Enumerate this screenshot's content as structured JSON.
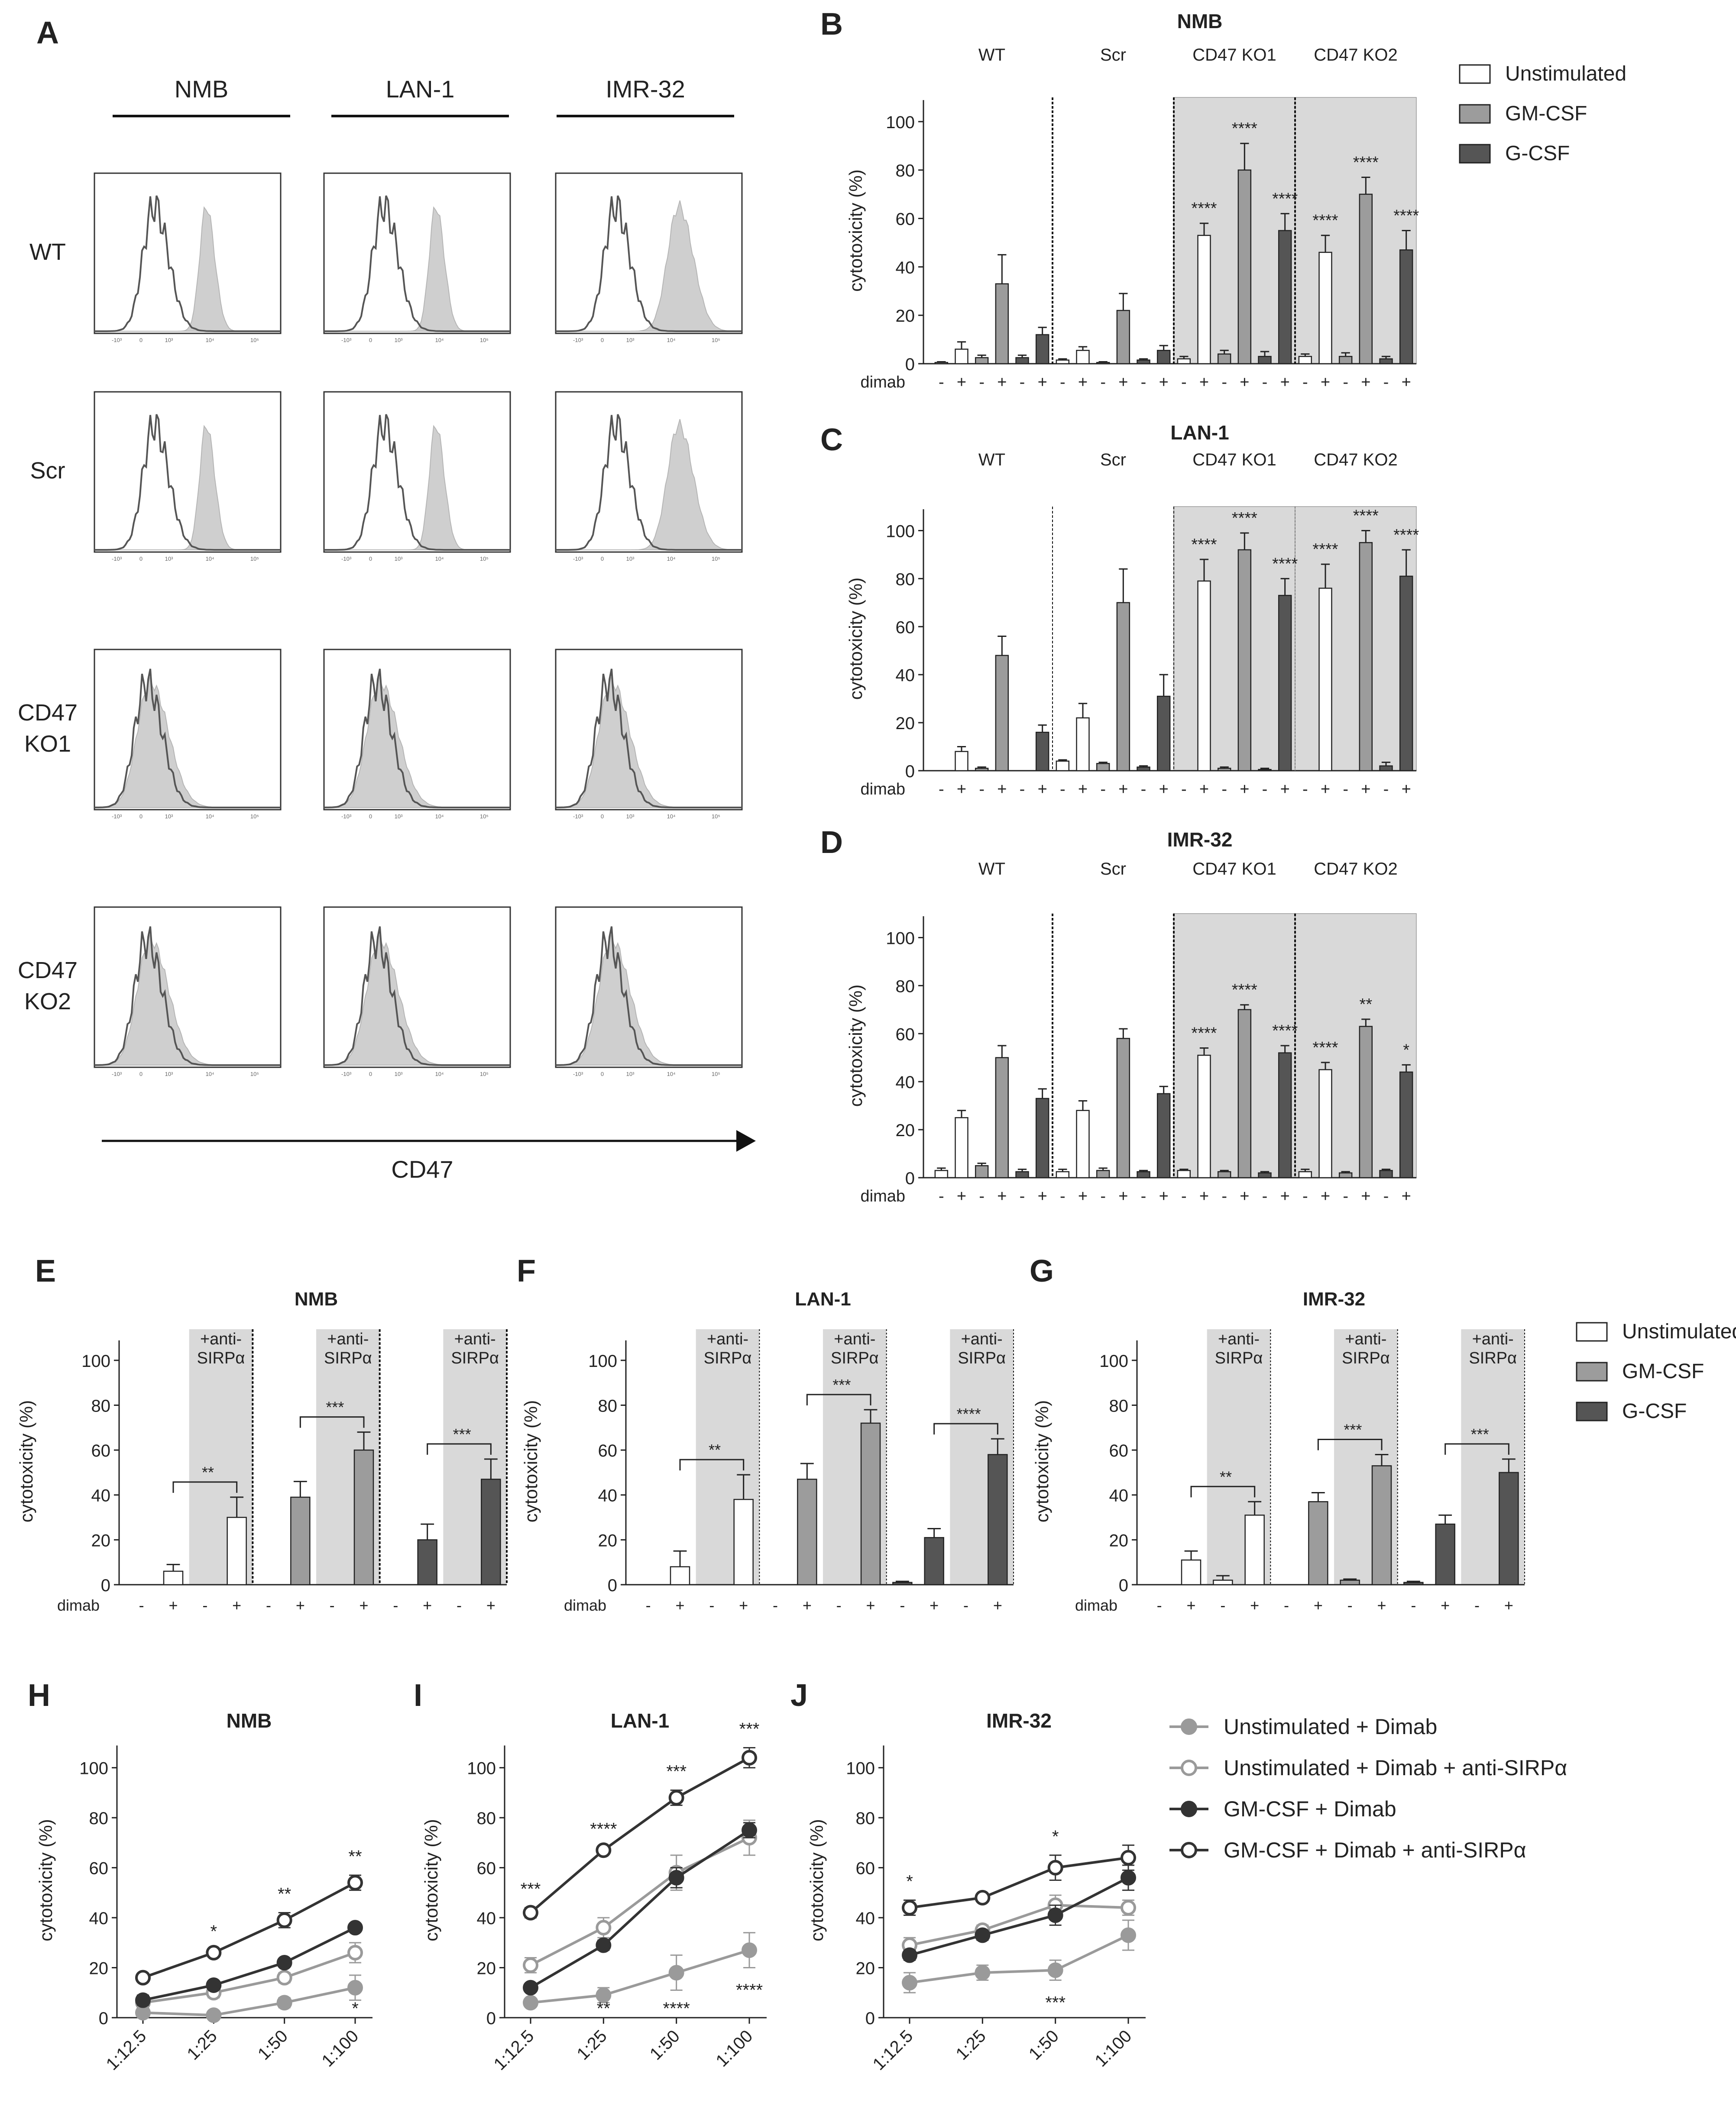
{
  "figure": {
    "panel_letters": [
      "A",
      "B",
      "C",
      "D",
      "E",
      "F",
      "G",
      "H",
      "I",
      "J"
    ],
    "panelA": {
      "columns": [
        "NMB",
        "LAN-1",
        "IMR-32"
      ],
      "rows": [
        "WT",
        "Scr",
        "CD47\nKO1",
        "CD47\nKO2"
      ],
      "axis_label": "CD47",
      "tick_labels": [
        "-10³",
        "0",
        "10³",
        "10⁴",
        "10⁵"
      ]
    },
    "barLegend": {
      "items": [
        "Unstimulated",
        "GM-CSF",
        "G-CSF"
      ]
    },
    "lineLegend": {
      "items": [
        "Unstimulated + Dimab",
        "Unstimulated + Dimab + anti-SIRPα",
        "GM-CSF + Dimab",
        "GM-CSF + Dimab + anti-SIRPα"
      ]
    },
    "colors": {
      "unstim": "#ffffff",
      "gm": "#9c9c9c",
      "g": "#555555",
      "shade": "#d9d9d9",
      "line_dark": "#333333",
      "line_light": "#9a9a9a"
    }
  },
  "chart_data": [
    {
      "id": "B",
      "type": "bar",
      "title": "NMB",
      "ylabel": "cytotoxicity (%)",
      "ylim": [
        0,
        110
      ],
      "yticks": [
        0,
        20,
        40,
        60,
        80,
        100
      ],
      "xrow_label": "dimab",
      "groups": [
        "WT",
        "Scr",
        "CD47 KO1",
        "CD47 KO2"
      ],
      "shaded_groups": [
        2,
        3
      ],
      "dimab": [
        "-",
        "+",
        "-",
        "+",
        "-",
        "+"
      ],
      "series": [
        {
          "group": "WT",
          "unstim": [
            0.5,
            6
          ],
          "gm": [
            2.5,
            33
          ],
          "g": [
            2.5,
            12
          ],
          "err_unstim": [
            0.3,
            3
          ],
          "err_gm": [
            1,
            12
          ],
          "err_g": [
            1,
            3
          ]
        },
        {
          "group": "Scr",
          "unstim": [
            1.5,
            5.5
          ],
          "gm": [
            0.5,
            22
          ],
          "g": [
            1.5,
            5.5
          ],
          "err_unstim": [
            0.5,
            1.5
          ],
          "err_gm": [
            0.3,
            7
          ],
          "err_g": [
            0.5,
            2
          ]
        },
        {
          "group": "CD47 KO1",
          "unstim": [
            2,
            53
          ],
          "gm": [
            4,
            80
          ],
          "g": [
            3,
            55
          ],
          "err_unstim": [
            1,
            5
          ],
          "err_gm": [
            1.5,
            11
          ],
          "err_g": [
            2,
            7
          ]
        },
        {
          "group": "CD47 KO2",
          "unstim": [
            3,
            46
          ],
          "gm": [
            3,
            70
          ],
          "g": [
            2,
            47
          ],
          "err_unstim": [
            1,
            7
          ],
          "err_gm": [
            1.5,
            7
          ],
          "err_g": [
            1,
            8
          ]
        }
      ],
      "annotations": [
        "****",
        "****",
        "****",
        "****",
        "****",
        "****"
      ]
    },
    {
      "id": "C",
      "type": "bar",
      "title": "LAN-1",
      "ylabel": "cytotoxicity (%)",
      "ylim": [
        0,
        110
      ],
      "yticks": [
        0,
        20,
        40,
        60,
        80,
        100
      ],
      "xrow_label": "dimab",
      "groups": [
        "WT",
        "Scr",
        "CD47 KO1",
        "CD47 KO2"
      ],
      "shaded_groups": [
        2,
        3
      ],
      "dimab": [
        "-",
        "+",
        "-",
        "+",
        "-",
        "+"
      ],
      "series": [
        {
          "group": "WT",
          "unstim": [
            0,
            8
          ],
          "gm": [
            1,
            48
          ],
          "g": [
            0,
            16
          ],
          "err_unstim": [
            0,
            2
          ],
          "err_gm": [
            0.5,
            8
          ],
          "err_g": [
            0,
            3
          ]
        },
        {
          "group": "Scr",
          "unstim": [
            4,
            22
          ],
          "gm": [
            3,
            70
          ],
          "g": [
            1.5,
            31
          ],
          "err_unstim": [
            0.5,
            6
          ],
          "err_gm": [
            0.5,
            14
          ],
          "err_g": [
            0.5,
            9
          ]
        },
        {
          "group": "CD47 KO1",
          "unstim": [
            0,
            79
          ],
          "gm": [
            1,
            92
          ],
          "g": [
            0.5,
            73
          ],
          "err_unstim": [
            0,
            9
          ],
          "err_gm": [
            0.5,
            7
          ],
          "err_g": [
            0.5,
            7
          ]
        },
        {
          "group": "CD47 KO2",
          "unstim": [
            0,
            76
          ],
          "gm": [
            0,
            95
          ],
          "g": [
            2,
            81
          ],
          "err_unstim": [
            0,
            10
          ],
          "err_gm": [
            0,
            5
          ],
          "err_g": [
            1.5,
            11
          ]
        }
      ],
      "annotations": [
        "****",
        "****",
        "****",
        "****",
        "****",
        "****"
      ]
    },
    {
      "id": "D",
      "type": "bar",
      "title": "IMR-32",
      "ylabel": "cytotoxicity (%)",
      "ylim": [
        0,
        110
      ],
      "yticks": [
        0,
        20,
        40,
        60,
        80,
        100
      ],
      "xrow_label": "dimab",
      "groups": [
        "WT",
        "Scr",
        "CD47 KO1",
        "CD47 KO2"
      ],
      "shaded_groups": [
        2,
        3
      ],
      "dimab": [
        "-",
        "+",
        "-",
        "+",
        "-",
        "+"
      ],
      "series": [
        {
          "group": "WT",
          "unstim": [
            3,
            25
          ],
          "gm": [
            5,
            50
          ],
          "g": [
            2.5,
            33
          ],
          "err_unstim": [
            1,
            3
          ],
          "err_gm": [
            1,
            5
          ],
          "err_g": [
            1,
            4
          ]
        },
        {
          "group": "Scr",
          "unstim": [
            2.5,
            28
          ],
          "gm": [
            3,
            58
          ],
          "g": [
            2.5,
            35
          ],
          "err_unstim": [
            1,
            4
          ],
          "err_gm": [
            1,
            4
          ],
          "err_g": [
            0.5,
            3
          ]
        },
        {
          "group": "CD47 KO1",
          "unstim": [
            3,
            51
          ],
          "gm": [
            2.5,
            70
          ],
          "g": [
            2,
            52
          ],
          "err_unstim": [
            0.5,
            3
          ],
          "err_gm": [
            0.5,
            2
          ],
          "err_g": [
            0.5,
            3
          ]
        },
        {
          "group": "CD47 KO2",
          "unstim": [
            2.5,
            45
          ],
          "gm": [
            2,
            63
          ],
          "g": [
            3,
            44
          ],
          "err_unstim": [
            1,
            3
          ],
          "err_gm": [
            0.5,
            3
          ],
          "err_g": [
            0.5,
            3
          ]
        }
      ],
      "annotations": [
        "****",
        "****",
        "****",
        "****",
        "**",
        "*"
      ]
    },
    {
      "id": "E",
      "type": "bar",
      "title": "NMB",
      "ylabel": "cytotoxicity (%)",
      "ylim": [
        0,
        110
      ],
      "yticks": [
        0,
        20,
        40,
        60,
        80,
        100
      ],
      "xrow_label": "dimab",
      "shade_label": "+anti-\nSIRPα",
      "dimab": [
        "-",
        "+",
        "-",
        "+"
      ],
      "groups": [
        {
          "name": "Unstimulated",
          "values": [
            0,
            6,
            0,
            30
          ],
          "errors": [
            0,
            3,
            0,
            9
          ],
          "sig": "**"
        },
        {
          "name": "GM-CSF",
          "values": [
            0,
            39,
            0,
            60
          ],
          "errors": [
            0,
            7,
            0,
            8
          ],
          "sig": "***"
        },
        {
          "name": "G-CSF",
          "values": [
            0,
            20,
            0,
            47
          ],
          "errors": [
            0,
            7,
            0,
            9
          ],
          "sig": "***"
        }
      ]
    },
    {
      "id": "F",
      "type": "bar",
      "title": "LAN-1",
      "ylabel": "cytotoxicity (%)",
      "ylim": [
        0,
        110
      ],
      "yticks": [
        0,
        20,
        40,
        60,
        80,
        100
      ],
      "xrow_label": "dimab",
      "shade_label": "+anti-\nSIRPα",
      "dimab": [
        "-",
        "+",
        "-",
        "+"
      ],
      "groups": [
        {
          "name": "Unstimulated",
          "values": [
            0,
            8,
            0,
            38
          ],
          "errors": [
            0,
            7,
            0,
            11
          ],
          "sig": "**"
        },
        {
          "name": "GM-CSF",
          "values": [
            0,
            47,
            0,
            72
          ],
          "errors": [
            0,
            7,
            0,
            6
          ],
          "sig": "***"
        },
        {
          "name": "G-CSF",
          "values": [
            1,
            21,
            0,
            58
          ],
          "errors": [
            0.5,
            4,
            0,
            7
          ],
          "sig": "****"
        }
      ]
    },
    {
      "id": "G",
      "type": "bar",
      "title": "IMR-32",
      "ylabel": "cytotoxicity (%)",
      "ylim": [
        0,
        110
      ],
      "yticks": [
        0,
        20,
        40,
        60,
        80,
        100
      ],
      "xrow_label": "dimab",
      "shade_label": "+anti-\nSIRPα",
      "dimab": [
        "-",
        "+",
        "-",
        "+"
      ],
      "groups": [
        {
          "name": "Unstimulated",
          "values": [
            0,
            11,
            2,
            31
          ],
          "errors": [
            0,
            4,
            2,
            6
          ],
          "sig": "**"
        },
        {
          "name": "GM-CSF",
          "values": [
            0,
            37,
            2,
            53
          ],
          "errors": [
            0,
            4,
            0.5,
            5
          ],
          "sig": "***"
        },
        {
          "name": "G-CSF",
          "values": [
            1,
            27,
            0,
            50
          ],
          "errors": [
            0.5,
            4,
            0,
            6
          ],
          "sig": "***"
        }
      ]
    },
    {
      "id": "H",
      "type": "line",
      "title": "NMB",
      "ylabel": "cytotoxicity (%)",
      "ylim": [
        0,
        110
      ],
      "yticks": [
        0,
        20,
        40,
        60,
        80,
        100
      ],
      "categories": [
        "1:12.5",
        "1:25",
        "1:50",
        "1:100"
      ],
      "series": [
        {
          "name": "Unstimulated + Dimab",
          "values": [
            2,
            1,
            6,
            12
          ],
          "errors": [
            1,
            1,
            2,
            5
          ]
        },
        {
          "name": "Unstimulated + Dimab + anti-SIRPα",
          "values": [
            6,
            10,
            16,
            26
          ],
          "errors": [
            2,
            2,
            2,
            4
          ]
        },
        {
          "name": "GM-CSF + Dimab",
          "values": [
            7,
            13,
            22,
            36
          ],
          "errors": [
            2,
            1,
            1,
            1
          ]
        },
        {
          "name": "GM-CSF + Dimab + anti-SIRPα",
          "values": [
            16,
            26,
            39,
            54
          ],
          "errors": [
            1,
            1,
            3,
            3
          ]
        }
      ],
      "annotations_top": [
        "",
        "*",
        "**",
        "**"
      ],
      "annotations_bottom": [
        "",
        "",
        "",
        "*"
      ]
    },
    {
      "id": "I",
      "type": "line",
      "title": "LAN-1",
      "ylabel": "cytotoxicity (%)",
      "ylim": [
        0,
        110
      ],
      "yticks": [
        0,
        20,
        40,
        60,
        80,
        100
      ],
      "categories": [
        "1:12.5",
        "1:25",
        "1:50",
        "1:100"
      ],
      "series": [
        {
          "name": "Unstimulated + Dimab",
          "values": [
            6,
            9,
            18,
            27
          ],
          "errors": [
            1,
            3,
            7,
            7
          ]
        },
        {
          "name": "Unstimulated + Dimab + anti-SIRPα",
          "values": [
            21,
            36,
            58,
            72
          ],
          "errors": [
            3,
            4,
            7,
            7
          ]
        },
        {
          "name": "GM-CSF + Dimab",
          "values": [
            12,
            29,
            56,
            75
          ],
          "errors": [
            1,
            2,
            4,
            3
          ]
        },
        {
          "name": "GM-CSF + Dimab + anti-SIRPα",
          "values": [
            42,
            67,
            88,
            104
          ],
          "errors": [
            2,
            1,
            3,
            4
          ]
        }
      ],
      "annotations_top": [
        "***",
        "****",
        "***",
        "***"
      ],
      "annotations_bottom": [
        "",
        "**",
        "****",
        "****"
      ]
    },
    {
      "id": "J",
      "type": "line",
      "title": "IMR-32",
      "ylabel": "cytotoxicity (%)",
      "ylim": [
        0,
        110
      ],
      "yticks": [
        0,
        20,
        40,
        60,
        80,
        100
      ],
      "categories": [
        "1:12.5",
        "1:25",
        "1:50",
        "1:100"
      ],
      "series": [
        {
          "name": "Unstimulated + Dimab",
          "values": [
            14,
            18,
            19,
            33
          ],
          "errors": [
            4,
            3,
            4,
            6
          ]
        },
        {
          "name": "Unstimulated + Dimab + anti-SIRPα",
          "values": [
            29,
            35,
            45,
            44
          ],
          "errors": [
            3,
            2,
            4,
            3
          ]
        },
        {
          "name": "GM-CSF + Dimab",
          "values": [
            25,
            33,
            41,
            56
          ],
          "errors": [
            2,
            2,
            4,
            5
          ]
        },
        {
          "name": "GM-CSF + Dimab + anti-SIRPα",
          "values": [
            44,
            48,
            60,
            64
          ],
          "errors": [
            3,
            1,
            5,
            5
          ]
        }
      ],
      "annotations_top": [
        "*",
        "",
        "*",
        ""
      ],
      "annotations_bottom": [
        "",
        "",
        "***",
        ""
      ]
    }
  ]
}
